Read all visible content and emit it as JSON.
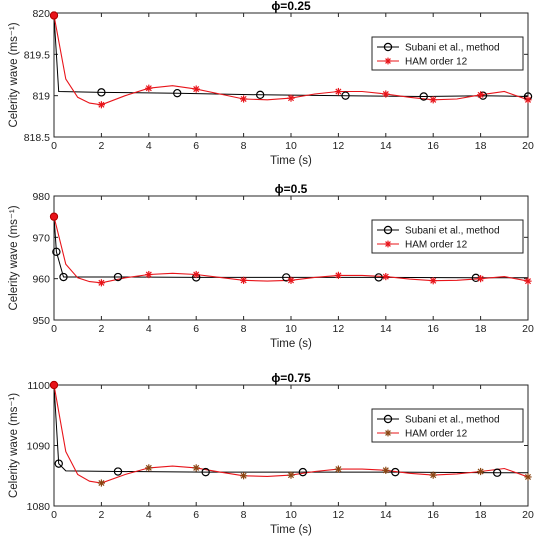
{
  "chart_data": [
    {
      "type": "line",
      "title": "ϕ=0.25",
      "xlabel": "Time (s)",
      "ylabel": "Celerity wave (ms⁻¹)",
      "xlim": [
        0,
        20
      ],
      "ylim": [
        818.5,
        820
      ],
      "xticks": [
        0,
        2,
        4,
        6,
        8,
        10,
        12,
        14,
        16,
        18,
        20
      ],
      "yticks": [
        818.5,
        819,
        819.5,
        820
      ],
      "ytick_labels": [
        "818.5",
        "819",
        "819.5",
        "820"
      ],
      "legend_position": "top-right",
      "grid": false,
      "series": [
        {
          "name": "Subani et al., method",
          "color": "#000000",
          "marker": "circle",
          "x": [
            0,
            0.2,
            2,
            5.2,
            8.7,
            12.3,
            15.6,
            18.1,
            20
          ],
          "y": [
            819.97,
            819.05,
            819.04,
            819.03,
            819.01,
            819.0,
            818.99,
            819.0,
            818.99
          ],
          "marker_x": [
            0,
            2,
            5.2,
            8.7,
            12.3,
            15.6,
            18.1,
            20
          ],
          "marker_y": [
            819.97,
            819.04,
            819.03,
            819.01,
            819.0,
            818.99,
            819.0,
            818.99
          ]
        },
        {
          "name": "HAM order 12",
          "color": "#e8141a",
          "marker": "asterisk",
          "x": [
            0,
            0.5,
            1,
            1.5,
            2,
            3,
            4,
            5,
            6,
            7,
            8,
            9,
            10,
            11,
            12,
            13,
            14,
            15,
            16,
            17,
            18,
            19,
            20
          ],
          "y": [
            819.97,
            819.2,
            818.98,
            818.91,
            818.89,
            819.0,
            819.09,
            819.12,
            819.08,
            819.02,
            818.96,
            818.95,
            818.97,
            819.02,
            819.05,
            819.05,
            819.02,
            818.98,
            818.95,
            818.96,
            819.01,
            819.05,
            818.95
          ],
          "marker_x": [
            0,
            2,
            4,
            6,
            8,
            10,
            12,
            14,
            16,
            18,
            20
          ],
          "marker_y": [
            819.97,
            818.89,
            819.09,
            819.08,
            818.96,
            818.97,
            819.05,
            819.02,
            818.95,
            819.01,
            818.95
          ]
        }
      ]
    },
    {
      "type": "line",
      "title": "ϕ=0.5",
      "xlabel": "Time (s)",
      "ylabel": "Celerity wave (ms⁻¹)",
      "xlim": [
        0,
        20
      ],
      "ylim": [
        950,
        980
      ],
      "xticks": [
        0,
        2,
        4,
        6,
        8,
        10,
        12,
        14,
        16,
        18,
        20
      ],
      "yticks": [
        950,
        960,
        970,
        980
      ],
      "ytick_labels": [
        "950",
        "960",
        "970",
        "980"
      ],
      "legend_position": "top-right",
      "grid": false,
      "series": [
        {
          "name": "Subani et al., method",
          "color": "#000000",
          "marker": "circle",
          "x": [
            0,
            0.1,
            0.4,
            2.7,
            6,
            9.8,
            13.7,
            17.8,
            20
          ],
          "y": [
            975,
            966.5,
            960.4,
            960.4,
            960.3,
            960.3,
            960.3,
            960.2,
            960.2
          ],
          "marker_x": [
            0,
            0.1,
            0.4,
            2.7,
            6,
            9.8,
            13.7,
            17.8
          ],
          "marker_y": [
            975,
            966.5,
            960.4,
            960.4,
            960.3,
            960.3,
            960.3,
            960.2
          ]
        },
        {
          "name": "HAM order 12",
          "color": "#e8141a",
          "marker": "asterisk",
          "x": [
            0,
            0.5,
            1,
            1.5,
            2,
            3,
            4,
            5,
            6,
            7,
            8,
            9,
            10,
            11,
            12,
            13,
            14,
            15,
            16,
            17,
            18,
            19,
            20
          ],
          "y": [
            975,
            963.5,
            960.2,
            959.3,
            959.0,
            960.2,
            961.0,
            961.3,
            961.0,
            960.3,
            959.6,
            959.4,
            959.6,
            960.3,
            960.8,
            960.8,
            960.5,
            959.9,
            959.5,
            959.6,
            960.0,
            960.5,
            959.4
          ],
          "marker_x": [
            0,
            2,
            4,
            6,
            8,
            10,
            12,
            14,
            16,
            18,
            20
          ],
          "marker_y": [
            975,
            959.0,
            961.0,
            961.0,
            959.6,
            959.6,
            960.8,
            960.5,
            959.5,
            960.0,
            959.4
          ]
        }
      ]
    },
    {
      "type": "line",
      "title": "ϕ=0.75",
      "xlabel": "Time (s)",
      "ylabel": "Celerity wave (ms⁻¹)",
      "xlim": [
        0,
        20
      ],
      "ylim": [
        1080,
        1100
      ],
      "xticks": [
        0,
        2,
        4,
        6,
        8,
        10,
        12,
        14,
        16,
        18,
        20
      ],
      "yticks": [
        1080,
        1090,
        1100
      ],
      "ytick_labels": [
        "1080",
        "1090",
        "1100"
      ],
      "legend_position": "top-right",
      "grid": false,
      "series": [
        {
          "name": "Subani et al., method",
          "color": "#000000",
          "marker": "circle",
          "x": [
            0,
            0.2,
            0.5,
            2.7,
            6.4,
            10.5,
            14.4,
            18.7,
            20
          ],
          "y": [
            1100,
            1087,
            1085.8,
            1085.7,
            1085.6,
            1085.6,
            1085.6,
            1085.5,
            1085.5
          ],
          "marker_x": [
            0,
            0.2,
            2.7,
            6.4,
            10.5,
            14.4,
            18.7
          ],
          "marker_y": [
            1100,
            1087,
            1085.7,
            1085.6,
            1085.6,
            1085.6,
            1085.5
          ]
        },
        {
          "name": "HAM order 12",
          "color": "#e8141a",
          "marker_color": "#8b4513",
          "marker": "asterisk",
          "x": [
            0,
            0.5,
            1,
            1.5,
            2,
            3,
            4,
            5,
            6,
            7,
            8,
            9,
            10,
            11,
            12,
            13,
            14,
            15,
            16,
            17,
            18,
            19,
            20
          ],
          "y": [
            1100,
            1089,
            1085.2,
            1084.1,
            1083.8,
            1085.2,
            1086.3,
            1086.6,
            1086.3,
            1085.6,
            1085.0,
            1084.9,
            1085.1,
            1085.7,
            1086.1,
            1086.1,
            1085.9,
            1085.4,
            1085.1,
            1085.3,
            1085.7,
            1086.2,
            1084.8
          ],
          "marker_x": [
            0,
            2,
            4,
            6,
            8,
            10,
            12,
            14,
            16,
            18,
            20
          ],
          "marker_y": [
            1100,
            1083.8,
            1086.3,
            1086.3,
            1085.0,
            1085.1,
            1086.1,
            1085.9,
            1085.1,
            1085.7,
            1084.8
          ]
        }
      ]
    }
  ]
}
